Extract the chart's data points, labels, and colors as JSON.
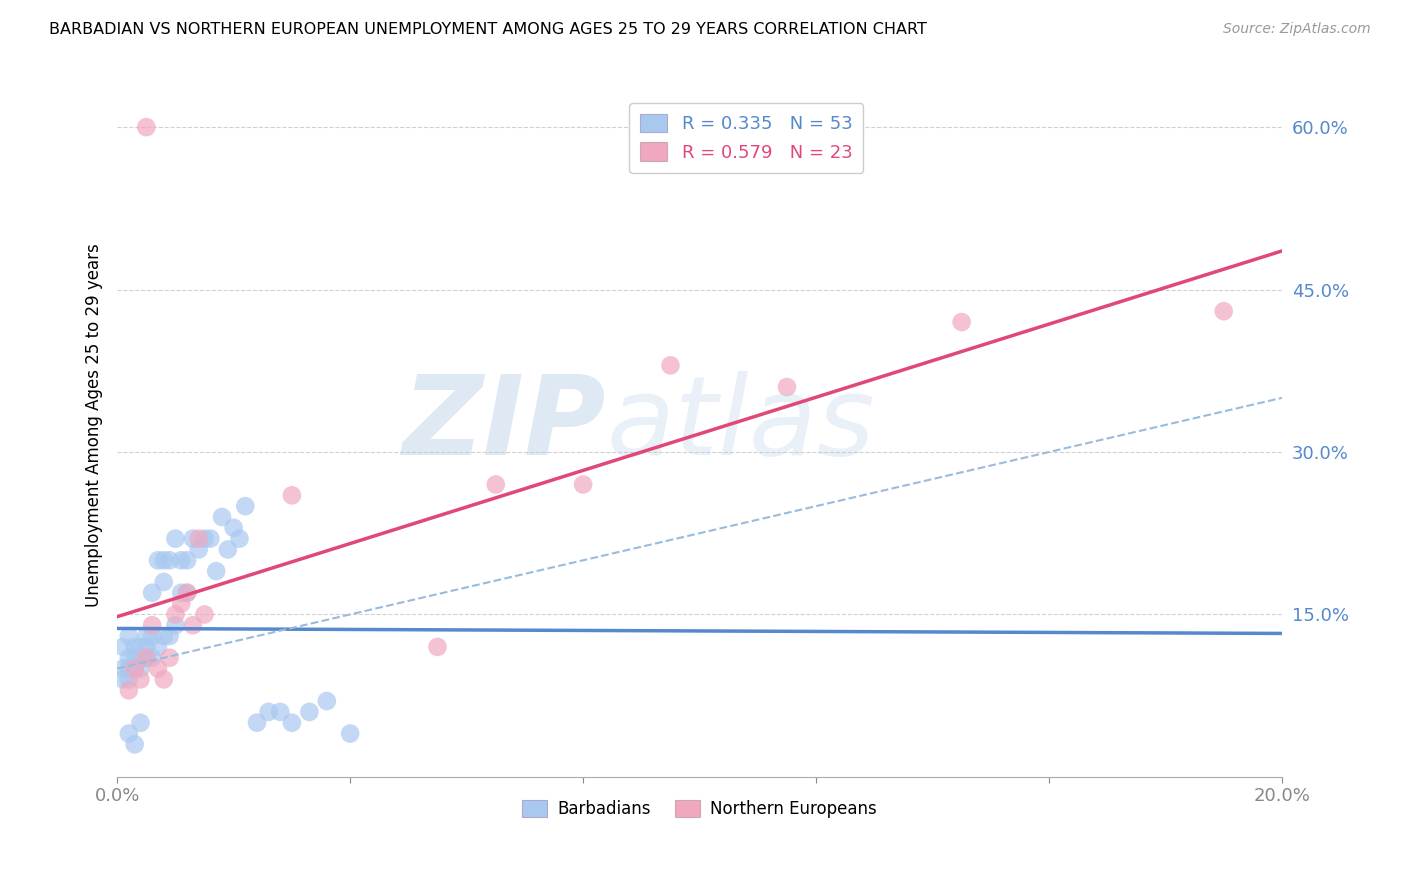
{
  "title": "BARBADIAN VS NORTHERN EUROPEAN UNEMPLOYMENT AMONG AGES 25 TO 29 YEARS CORRELATION CHART",
  "source": "Source: ZipAtlas.com",
  "ylabel": "Unemployment Among Ages 25 to 29 years",
  "xlim": [
    0.0,
    0.2
  ],
  "ylim": [
    0.0,
    0.65
  ],
  "xticks": [
    0.0,
    0.04,
    0.08,
    0.12,
    0.16,
    0.2
  ],
  "xtick_labels": [
    "0.0%",
    "",
    "",
    "",
    "",
    "20.0%"
  ],
  "yticks": [
    0.0,
    0.15,
    0.3,
    0.45,
    0.6
  ],
  "ytick_labels": [
    "",
    "15.0%",
    "30.0%",
    "45.0%",
    "60.0%"
  ],
  "blue_color": "#a8c8f0",
  "pink_color": "#f0a8c0",
  "blue_line_color": "#5588cc",
  "pink_line_color": "#e04878",
  "blue_dash_color": "#99bbdd",
  "barbadian_x": [
    0.001,
    0.001,
    0.001,
    0.002,
    0.002,
    0.002,
    0.002,
    0.003,
    0.003,
    0.003,
    0.003,
    0.004,
    0.004,
    0.004,
    0.005,
    0.005,
    0.005,
    0.006,
    0.006,
    0.006,
    0.007,
    0.007,
    0.008,
    0.008,
    0.008,
    0.009,
    0.009,
    0.01,
    0.01,
    0.011,
    0.011,
    0.012,
    0.012,
    0.013,
    0.014,
    0.015,
    0.016,
    0.017,
    0.018,
    0.019,
    0.02,
    0.021,
    0.022,
    0.024,
    0.026,
    0.028,
    0.03,
    0.033,
    0.036,
    0.04,
    0.002,
    0.003,
    0.004
  ],
  "barbadian_y": [
    0.1,
    0.09,
    0.12,
    0.1,
    0.11,
    0.09,
    0.13,
    0.1,
    0.11,
    0.1,
    0.12,
    0.11,
    0.12,
    0.1,
    0.11,
    0.13,
    0.12,
    0.11,
    0.13,
    0.17,
    0.12,
    0.2,
    0.13,
    0.18,
    0.2,
    0.13,
    0.2,
    0.14,
    0.22,
    0.17,
    0.2,
    0.17,
    0.2,
    0.22,
    0.21,
    0.22,
    0.22,
    0.19,
    0.24,
    0.21,
    0.23,
    0.22,
    0.25,
    0.05,
    0.06,
    0.06,
    0.05,
    0.06,
    0.07,
    0.04,
    0.04,
    0.03,
    0.05
  ],
  "northern_x": [
    0.002,
    0.003,
    0.004,
    0.005,
    0.005,
    0.006,
    0.007,
    0.008,
    0.009,
    0.01,
    0.011,
    0.012,
    0.013,
    0.014,
    0.015,
    0.03,
    0.055,
    0.065,
    0.08,
    0.095,
    0.115,
    0.145,
    0.19
  ],
  "northern_y": [
    0.08,
    0.1,
    0.09,
    0.6,
    0.11,
    0.14,
    0.1,
    0.09,
    0.11,
    0.15,
    0.16,
    0.17,
    0.14,
    0.22,
    0.15,
    0.26,
    0.12,
    0.27,
    0.27,
    0.38,
    0.36,
    0.42,
    0.43
  ]
}
